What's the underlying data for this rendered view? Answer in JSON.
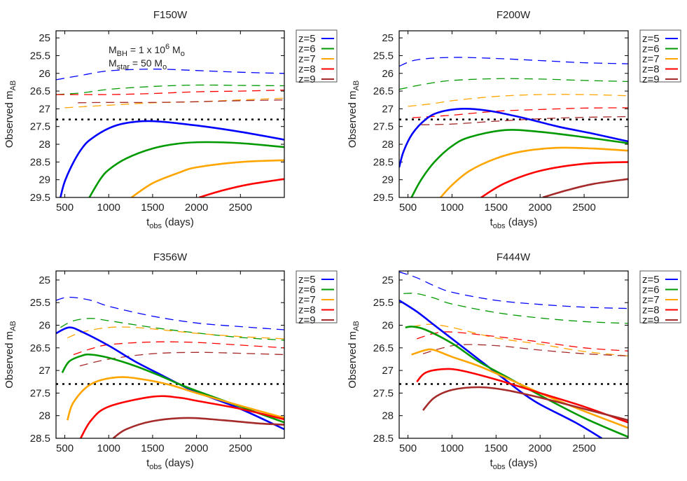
{
  "colors": {
    "z=5": "#0000ff",
    "z=6": "#009a00",
    "z=7": "#ffa500",
    "z=8": "#ff0000",
    "z=9": "#a52a2a",
    "threshold": "#000000"
  },
  "annotation": {
    "line1": {
      "m": "M",
      "sub1": "BH",
      "mid": " = 1 x 10",
      "sup": "6",
      "m2": " M",
      "sub2": "o"
    },
    "line2": {
      "m": "M",
      "sub1": "star",
      "mid": " = 50 M",
      "sub2": "o"
    }
  },
  "chart_data": [
    {
      "type": "line",
      "title": "F150W",
      "xlabel": {
        "main": "t",
        "sub": "obs",
        "rest": " (days)"
      },
      "ylabel": {
        "main": "Observed m",
        "sub": "AB"
      },
      "xlim": [
        400,
        3000
      ],
      "ylim": [
        24.8,
        29.5
      ],
      "y_inverted": true,
      "xticks": [
        500,
        1000,
        1500,
        2000,
        2500
      ],
      "xtick_labels": [
        "500",
        "1000",
        "1500",
        "2000",
        "2500"
      ],
      "yticks": [
        25,
        25.5,
        26,
        26.5,
        27,
        27.5,
        28,
        28.5,
        29,
        29.5
      ],
      "ytick_labels": [
        "25",
        "25.5",
        "26",
        "26.5",
        "27",
        "27.5",
        "28",
        "28.5",
        "29",
        "29.5"
      ],
      "threshold": 27.3,
      "legend": [
        "z=5",
        "z=6",
        "z=7",
        "z=8",
        "z=9"
      ],
      "legend_placement": "outside-right",
      "solid": {
        "z=5": {
          "x": [
            450,
            500,
            600,
            700,
            800,
            1000,
            1200,
            1500,
            2000,
            2500,
            3000
          ],
          "y": [
            29.5,
            29.05,
            28.5,
            28.1,
            27.85,
            27.55,
            27.4,
            27.35,
            27.47,
            27.65,
            27.87
          ]
        },
        "z=6": {
          "x": [
            780,
            900,
            1000,
            1200,
            1500,
            1800,
            2100,
            2500,
            3000
          ],
          "y": [
            29.5,
            29.0,
            28.72,
            28.4,
            28.12,
            27.98,
            27.94,
            27.97,
            28.08
          ]
        },
        "z=7": {
          "x": [
            1260,
            1500,
            1800,
            2000,
            2500,
            3000
          ],
          "y": [
            29.5,
            29.1,
            28.8,
            28.65,
            28.5,
            28.45
          ]
        },
        "z=8": {
          "x": [
            2030,
            2300,
            2600,
            3000
          ],
          "y": [
            29.5,
            29.3,
            29.13,
            28.98
          ]
        },
        "z=9": {
          "x": [],
          "y": []
        }
      },
      "dashed": {
        "z=5": {
          "x": [
            400,
            700,
            1000,
            1500,
            2000,
            2500,
            3000
          ],
          "y": [
            26.18,
            26.05,
            25.93,
            25.88,
            25.92,
            25.97,
            26.0
          ]
        },
        "z=6": {
          "x": [
            400,
            700,
            1000,
            1500,
            2000,
            2500,
            3000
          ],
          "y": [
            26.6,
            26.55,
            26.45,
            26.37,
            26.33,
            26.34,
            26.35
          ]
        },
        "z=7": {
          "x": [
            500,
            1000,
            1500,
            2000,
            2500,
            3000
          ],
          "y": [
            26.97,
            26.9,
            26.83,
            26.8,
            26.75,
            26.7
          ]
        },
        "z=8": {
          "x": [
            400,
            700,
            1000,
            1500,
            2000,
            2500,
            3000
          ],
          "y": [
            26.6,
            26.6,
            26.6,
            26.57,
            26.52,
            26.5,
            26.47
          ]
        },
        "z=9": {
          "x": [
            650,
            1000,
            1500,
            2000,
            2500,
            3000
          ],
          "y": [
            26.83,
            26.82,
            26.82,
            26.8,
            26.77,
            26.75
          ]
        }
      }
    },
    {
      "type": "line",
      "title": "F200W",
      "xlabel": {
        "main": "t",
        "sub": "obs",
        "rest": " (days)"
      },
      "ylabel": {
        "main": "Observed m",
        "sub": "AB"
      },
      "xlim": [
        400,
        3000
      ],
      "ylim": [
        24.8,
        29.5
      ],
      "y_inverted": true,
      "xticks": [
        500,
        1000,
        1500,
        2000,
        2500
      ],
      "xtick_labels": [
        "500",
        "1000",
        "1500",
        "2000",
        "2500"
      ],
      "yticks": [
        25,
        25.5,
        26,
        26.5,
        27,
        27.5,
        28,
        28.5,
        29,
        29.5
      ],
      "ytick_labels": [
        "25",
        "25.5",
        "26",
        "26.5",
        "27",
        "27.5",
        "28",
        "28.5",
        "29",
        "29.5"
      ],
      "threshold": 27.3,
      "legend": [
        "z=5",
        "z=6",
        "z=7",
        "z=8",
        "z=9"
      ],
      "legend_placement": "outside-right",
      "solid": {
        "z=5": {
          "x": [
            400,
            450,
            550,
            700,
            850,
            1100,
            1400,
            1800,
            2200,
            2600,
            3000
          ],
          "y": [
            28.65,
            28.2,
            27.7,
            27.3,
            27.1,
            27.0,
            27.05,
            27.25,
            27.5,
            27.7,
            27.92
          ]
        },
        "z=6": {
          "x": [
            540,
            650,
            800,
            1000,
            1200,
            1600,
            2000,
            2500,
            3000
          ],
          "y": [
            29.5,
            29.0,
            28.5,
            28.05,
            27.8,
            27.6,
            27.65,
            27.8,
            27.97
          ]
        },
        "z=7": {
          "x": [
            870,
            1000,
            1200,
            1500,
            1800,
            2200,
            2600,
            3000
          ],
          "y": [
            29.5,
            29.15,
            28.75,
            28.4,
            28.2,
            28.1,
            28.12,
            28.18
          ]
        },
        "z=8": {
          "x": [
            1330,
            1600,
            2000,
            2500,
            3000
          ],
          "y": [
            29.5,
            29.1,
            28.75,
            28.55,
            28.5
          ]
        },
        "z=9": {
          "x": [
            2030,
            2300,
            2600,
            3000
          ],
          "y": [
            29.5,
            29.3,
            29.12,
            28.98
          ]
        }
      },
      "dashed": {
        "z=5": {
          "x": [
            400,
            600,
            1000,
            1500,
            2000,
            2500,
            3000
          ],
          "y": [
            25.8,
            25.62,
            25.55,
            25.58,
            25.64,
            25.7,
            25.73
          ]
        },
        "z=6": {
          "x": [
            400,
            700,
            1000,
            1500,
            2000,
            2500,
            3000
          ],
          "y": [
            26.45,
            26.3,
            26.2,
            26.15,
            26.16,
            26.2,
            26.23
          ]
        },
        "z=7": {
          "x": [
            500,
            800,
            1000,
            1500,
            2000,
            2500,
            3000
          ],
          "y": [
            26.93,
            26.85,
            26.77,
            26.65,
            26.6,
            26.6,
            26.63
          ]
        },
        "z=8": {
          "x": [
            550,
            1000,
            1500,
            2000,
            2500,
            3000
          ],
          "y": [
            27.25,
            27.18,
            27.07,
            27.02,
            26.98,
            26.97
          ]
        },
        "z=9": {
          "x": [
            650,
            1000,
            1500,
            2000,
            2500,
            3000
          ],
          "y": [
            27.45,
            27.43,
            27.35,
            27.28,
            27.24,
            27.22
          ]
        }
      }
    },
    {
      "type": "line",
      "title": "F356W",
      "xlabel": {
        "main": "t",
        "sub": "obs",
        "rest": " (days)"
      },
      "ylabel": {
        "main": "Observed m",
        "sub": "AB"
      },
      "xlim": [
        400,
        3000
      ],
      "ylim": [
        24.8,
        28.5
      ],
      "y_inverted": true,
      "xticks": [
        500,
        1000,
        1500,
        2000,
        2500
      ],
      "xtick_labels": [
        "500",
        "1000",
        "1500",
        "2000",
        "2500"
      ],
      "yticks": [
        25,
        25.5,
        26,
        26.5,
        27,
        27.5,
        28,
        28.5
      ],
      "ytick_labels": [
        "25",
        "25.5",
        "26",
        "26.5",
        "27",
        "27.5",
        "28",
        "28.5"
      ],
      "threshold": 27.3,
      "legend": [
        "z=5",
        "z=6",
        "z=7",
        "z=8",
        "z=9"
      ],
      "legend_placement": "outside-right",
      "solid": {
        "z=5": {
          "x": [
            400,
            550,
            700,
            1000,
            1300,
            1600,
            1800,
            2000,
            2500,
            3000
          ],
          "y": [
            26.18,
            26.05,
            26.15,
            26.45,
            26.8,
            27.1,
            27.3,
            27.48,
            27.85,
            28.3
          ]
        },
        "z=6": {
          "x": [
            470,
            550,
            700,
            800,
            1000,
            1300,
            1600,
            1800,
            2000,
            2500,
            3000
          ],
          "y": [
            27.05,
            26.8,
            26.67,
            26.65,
            26.72,
            26.9,
            27.13,
            27.3,
            27.45,
            27.8,
            28.15
          ]
        },
        "z=7": {
          "x": [
            530,
            600,
            800,
            1100,
            1400,
            1700,
            2000,
            2500,
            3000
          ],
          "y": [
            28.1,
            27.7,
            27.3,
            27.15,
            27.2,
            27.32,
            27.5,
            27.78,
            28.05
          ]
        },
        "z=8": {
          "x": [
            680,
            800,
            1000,
            1500,
            1800,
            2000,
            2500,
            3000
          ],
          "y": [
            28.5,
            28.1,
            27.8,
            27.58,
            27.6,
            27.67,
            27.85,
            28.08
          ]
        },
        "z=9": {
          "x": [
            1050,
            1200,
            1500,
            1900,
            2300,
            2700,
            3000
          ],
          "y": [
            28.5,
            28.3,
            28.12,
            28.05,
            28.1,
            28.17,
            28.2
          ]
        }
      },
      "dashed": {
        "z=5": {
          "x": [
            400,
            550,
            800,
            1000,
            1500,
            2000,
            2500,
            3000
          ],
          "y": [
            25.45,
            25.38,
            25.45,
            25.58,
            25.8,
            25.95,
            26.03,
            26.1
          ]
        },
        "z=6": {
          "x": [
            450,
            600,
            800,
            1000,
            1500,
            2000,
            2500,
            3000
          ],
          "y": [
            26.05,
            25.9,
            25.85,
            25.9,
            26.05,
            26.17,
            26.27,
            26.33
          ]
        },
        "z=7": {
          "x": [
            530,
            700,
            1000,
            1300,
            1700,
            2000,
            2500,
            3000
          ],
          "y": [
            26.28,
            26.15,
            26.05,
            26.05,
            26.12,
            26.18,
            26.25,
            26.3
          ]
        },
        "z=8": {
          "x": [
            600,
            800,
            1000,
            1500,
            2000,
            2500,
            3000
          ],
          "y": [
            26.65,
            26.52,
            26.43,
            26.37,
            26.38,
            26.44,
            26.5
          ]
        },
        "z=9": {
          "x": [
            670,
            1000,
            1500,
            2000,
            2500,
            3000
          ],
          "y": [
            26.9,
            26.75,
            26.63,
            26.6,
            26.62,
            26.65
          ]
        }
      }
    },
    {
      "type": "line",
      "title": "F444W",
      "xlabel": {
        "main": "t",
        "sub": "obs",
        "rest": " (days)"
      },
      "ylabel": {
        "main": "Observed m",
        "sub": "AB"
      },
      "xlim": [
        400,
        3000
      ],
      "ylim": [
        24.8,
        28.5
      ],
      "y_inverted": true,
      "xticks": [
        500,
        1000,
        1500,
        2000,
        2500
      ],
      "xtick_labels": [
        "500",
        "1000",
        "1500",
        "2000",
        "2500"
      ],
      "yticks": [
        25,
        25.5,
        26,
        26.5,
        27,
        27.5,
        28,
        28.5
      ],
      "ytick_labels": [
        "25",
        "25.5",
        "26",
        "26.5",
        "27",
        "27.5",
        "28",
        "28.5"
      ],
      "threshold": 27.3,
      "legend": [
        "z=5",
        "z=6",
        "z=7",
        "z=8",
        "z=9"
      ],
      "legend_placement": "outside-right",
      "solid": {
        "z=5": {
          "x": [
            400,
            600,
            800,
            1000,
            1300,
            1600,
            1800,
            2000,
            2400,
            2700
          ],
          "y": [
            25.45,
            25.7,
            26.0,
            26.3,
            26.75,
            27.2,
            27.5,
            27.75,
            28.15,
            28.5
          ]
        },
        "z=6": {
          "x": [
            470,
            550,
            700,
            1000,
            1300,
            1600,
            2000,
            2500,
            3000
          ],
          "y": [
            26.05,
            26.03,
            26.1,
            26.4,
            26.8,
            27.12,
            27.55,
            28.05,
            28.47
          ]
        },
        "z=7": {
          "x": [
            540,
            700,
            800,
            1000,
            1300,
            1600,
            2000,
            2500,
            3000
          ],
          "y": [
            26.65,
            26.55,
            26.55,
            26.7,
            26.9,
            27.15,
            27.5,
            27.9,
            28.27
          ]
        },
        "z=8": {
          "x": [
            600,
            700,
            900,
            1100,
            1500,
            2000,
            2500,
            3000
          ],
          "y": [
            27.25,
            27.05,
            26.97,
            27.0,
            27.2,
            27.5,
            27.8,
            28.15
          ]
        },
        "z=9": {
          "x": [
            670,
            800,
            1000,
            1300,
            1600,
            2000,
            2500,
            3000
          ],
          "y": [
            27.88,
            27.6,
            27.43,
            27.37,
            27.43,
            27.6,
            27.85,
            28.1
          ]
        }
      },
      "dashed": {
        "z=5": {
          "x": [
            400,
            600,
            800,
            1000,
            1500,
            2000,
            2500,
            3000
          ],
          "y": [
            24.82,
            24.95,
            25.13,
            25.27,
            25.45,
            25.54,
            25.6,
            25.63
          ]
        },
        "z=6": {
          "x": [
            450,
            600,
            800,
            1000,
            1500,
            2000,
            2500,
            3000
          ],
          "y": [
            25.3,
            25.3,
            25.4,
            25.53,
            25.72,
            25.84,
            25.92,
            25.96
          ]
        },
        "z=7": {
          "x": [
            550,
            750,
            1000,
            1500,
            2000,
            2500,
            3000
          ],
          "y": [
            26.03,
            25.98,
            26.05,
            26.28,
            26.42,
            26.58,
            26.68
          ]
        },
        "z=8": {
          "x": [
            600,
            800,
            1000,
            1500,
            2000,
            2500,
            3000
          ],
          "y": [
            26.3,
            26.18,
            26.15,
            26.25,
            26.37,
            26.5,
            26.57
          ]
        },
        "z=9": {
          "x": [
            670,
            900,
            1100,
            1500,
            2000,
            2500,
            3000
          ],
          "y": [
            26.63,
            26.5,
            26.43,
            26.45,
            26.55,
            26.63,
            26.68
          ]
        }
      }
    }
  ]
}
